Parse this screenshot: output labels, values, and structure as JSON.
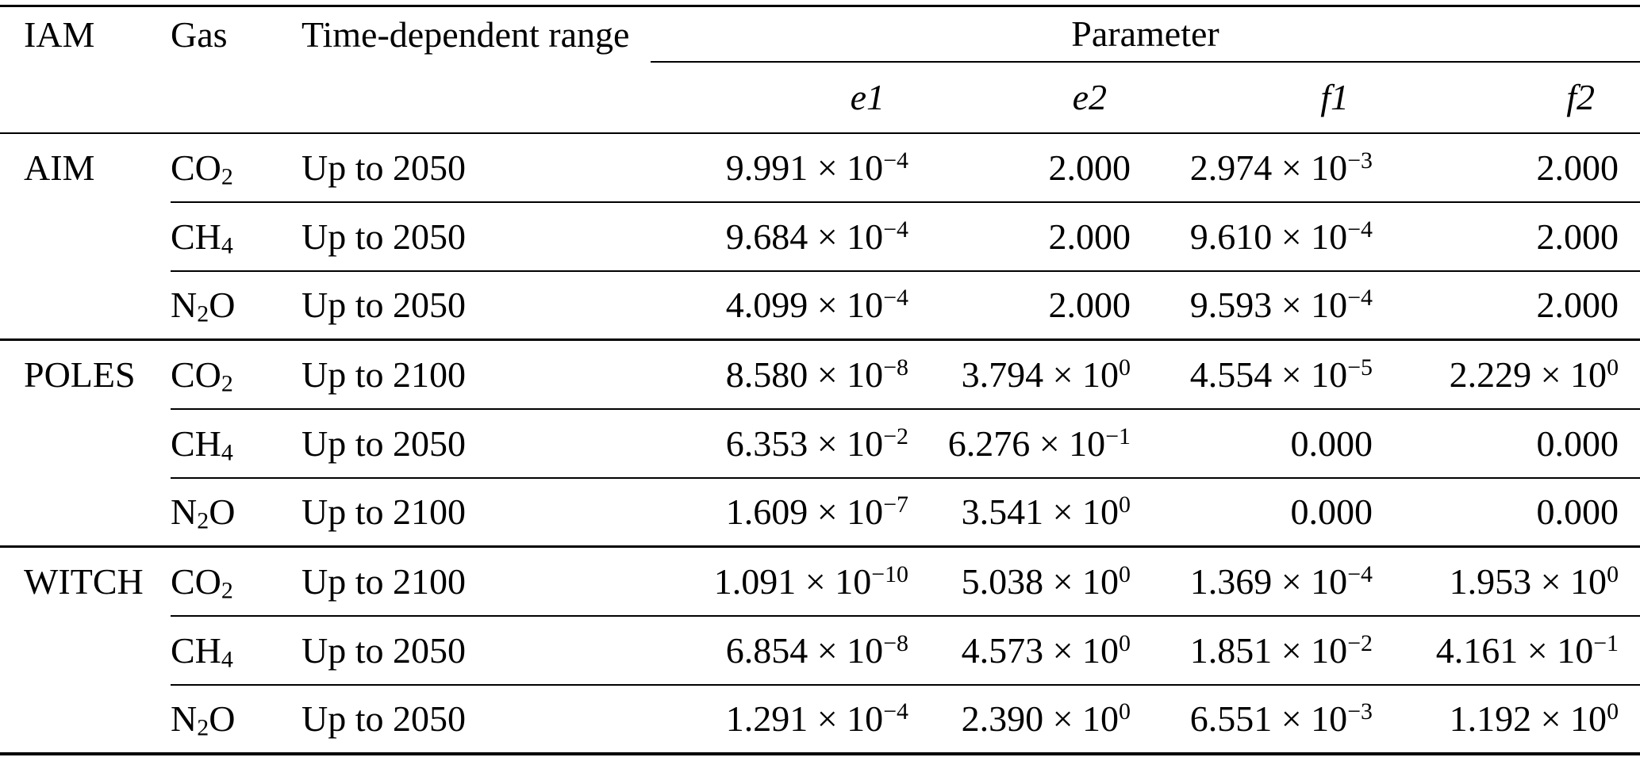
{
  "colors": {
    "background": "#ffffff",
    "text": "#000000",
    "rules": "#000000"
  },
  "table": {
    "headers": {
      "iam": "IAM",
      "gas": "Gas",
      "range": "Time-dependent range",
      "parameter_group": "Parameter",
      "parameters": [
        "e1",
        "e2",
        "f1",
        "f2"
      ]
    },
    "groups": [
      {
        "iam": "AIM",
        "rows": [
          {
            "gas": "CO_2",
            "range": "Up to 2050",
            "e1": "9.991 × 10^−4",
            "e2": "2.000",
            "f1": "2.974 × 10^−3",
            "f2": "2.000"
          },
          {
            "gas": "CH_4",
            "range": "Up to 2050",
            "e1": "9.684 × 10^−4",
            "e2": "2.000",
            "f1": "9.610 × 10^−4",
            "f2": "2.000"
          },
          {
            "gas": "N_2O",
            "range": "Up to 2050",
            "e1": "4.099 × 10^−4",
            "e2": "2.000",
            "f1": "9.593 × 10^−4",
            "f2": "2.000"
          }
        ]
      },
      {
        "iam": "POLES",
        "rows": [
          {
            "gas": "CO_2",
            "range": "Up to 2100",
            "e1": "8.580 × 10^−8",
            "e2": "3.794 × 10^0",
            "f1": "4.554 × 10^−5",
            "f2": "2.229 × 10^0"
          },
          {
            "gas": "CH_4",
            "range": "Up to 2050",
            "e1": "6.353 × 10^−2",
            "e2": "6.276 × 10^−1",
            "f1": "0.000",
            "f2": "0.000"
          },
          {
            "gas": "N_2O",
            "range": "Up to 2100",
            "e1": "1.609 × 10^−7",
            "e2": "3.541 × 10^0",
            "f1": "0.000",
            "f2": "0.000"
          }
        ]
      },
      {
        "iam": "WITCH",
        "rows": [
          {
            "gas": "CO_2",
            "range": "Up to 2100",
            "e1": "1.091 × 10^−10",
            "e2": "5.038 × 10^0",
            "f1": "1.369 × 10^−4",
            "f2": "1.953 × 10^0"
          },
          {
            "gas": "CH_4",
            "range": "Up to 2050",
            "e1": "6.854 × 10^−8",
            "e2": "4.573 × 10^0",
            "f1": "1.851 × 10^−2",
            "f2": "4.161 × 10^−1"
          },
          {
            "gas": "N_2O",
            "range": "Up to 2050",
            "e1": "1.291 × 10^−4",
            "e2": "2.390 × 10^0",
            "f1": "6.551 × 10^−3",
            "f2": "1.192 × 10^0"
          }
        ]
      }
    ]
  },
  "chart_data": {
    "type": "table",
    "title": "",
    "columns": [
      "IAM",
      "Gas",
      "Time-dependent range",
      "e1",
      "e2",
      "f1",
      "f2"
    ],
    "rows": [
      [
        "AIM",
        "CO2",
        "Up to 2050",
        0.0009991,
        2.0,
        0.002974,
        2.0
      ],
      [
        "AIM",
        "CH4",
        "Up to 2050",
        0.0009684,
        2.0,
        0.000961,
        2.0
      ],
      [
        "AIM",
        "N2O",
        "Up to 2050",
        0.0004099,
        2.0,
        0.0009593,
        2.0
      ],
      [
        "POLES",
        "CO2",
        "Up to 2100",
        8.58e-08,
        3.794,
        4.554e-05,
        2.229
      ],
      [
        "POLES",
        "CH4",
        "Up to 2050",
        0.06353,
        0.6276,
        0.0,
        0.0
      ],
      [
        "POLES",
        "N2O",
        "Up to 2100",
        1.609e-07,
        3.541,
        0.0,
        0.0
      ],
      [
        "WITCH",
        "CO2",
        "Up to 2100",
        1.091e-10,
        5.038,
        0.0001369,
        1.953
      ],
      [
        "WITCH",
        "CH4",
        "Up to 2050",
        6.854e-08,
        4.573,
        0.01851,
        0.4161
      ],
      [
        "WITCH",
        "N2O",
        "Up to 2050",
        0.0001291,
        2.39,
        0.006551,
        1.192
      ]
    ]
  }
}
